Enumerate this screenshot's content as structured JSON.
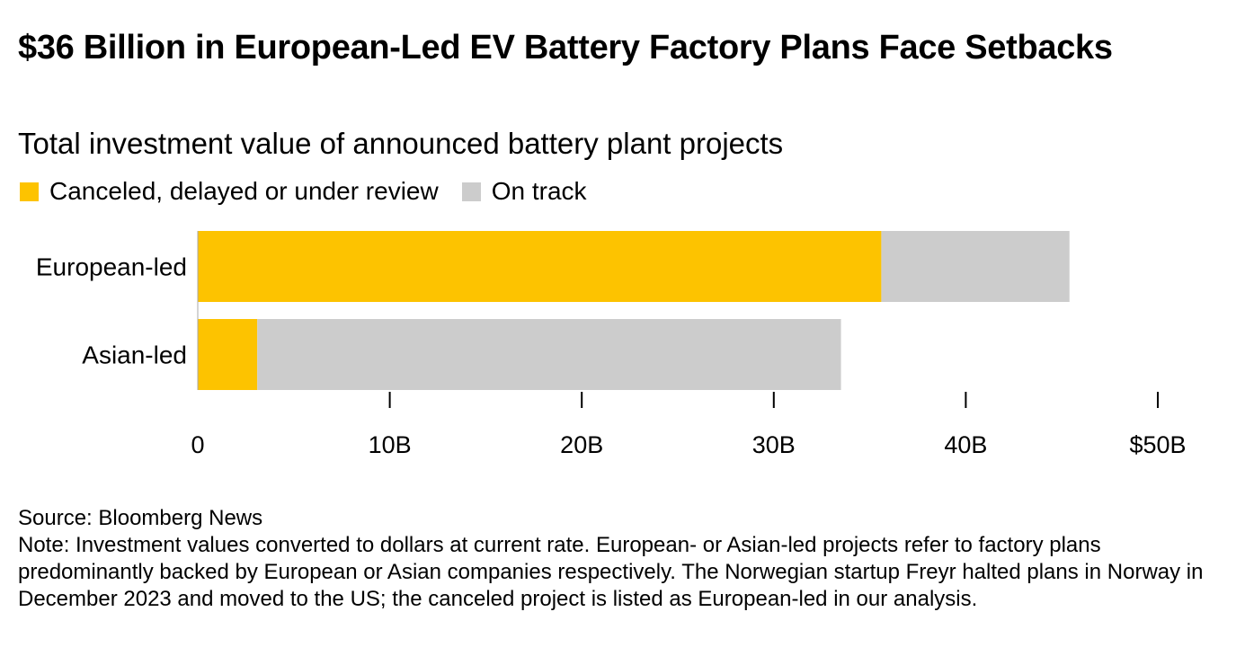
{
  "title": "$36 Billion in European-Led EV Battery Factory Plans Face Setbacks",
  "subtitle": "Total investment value of announced battery plant projects",
  "chart_data": {
    "type": "bar",
    "orientation": "horizontal",
    "stacked": true,
    "categories": [
      "European-led",
      "Asian-led"
    ],
    "series": [
      {
        "name": "Canceled, delayed or under review",
        "color": "#FDC300",
        "values": [
          35.6,
          3.1
        ]
      },
      {
        "name": "On track",
        "color": "#CCCCCC",
        "values": [
          9.8,
          30.4
        ]
      }
    ],
    "x_ticks": [
      0,
      10,
      20,
      30,
      40,
      50
    ],
    "x_tick_labels": [
      "0",
      "10B",
      "20B",
      "30B",
      "40B",
      "$50B"
    ],
    "xlim": [
      0,
      50
    ],
    "grid": false,
    "legend_position": "top-left"
  },
  "source": "Source: Bloomberg News",
  "note": "Note: Investment values converted to dollars at current rate. European- or Asian-led projects refer to factory plans predominantly backed by European or Asian companies respectively. The Norwegian startup Freyr halted plans in Norway in December 2023 and moved to the US; the canceled project is listed as European-led in our analysis."
}
